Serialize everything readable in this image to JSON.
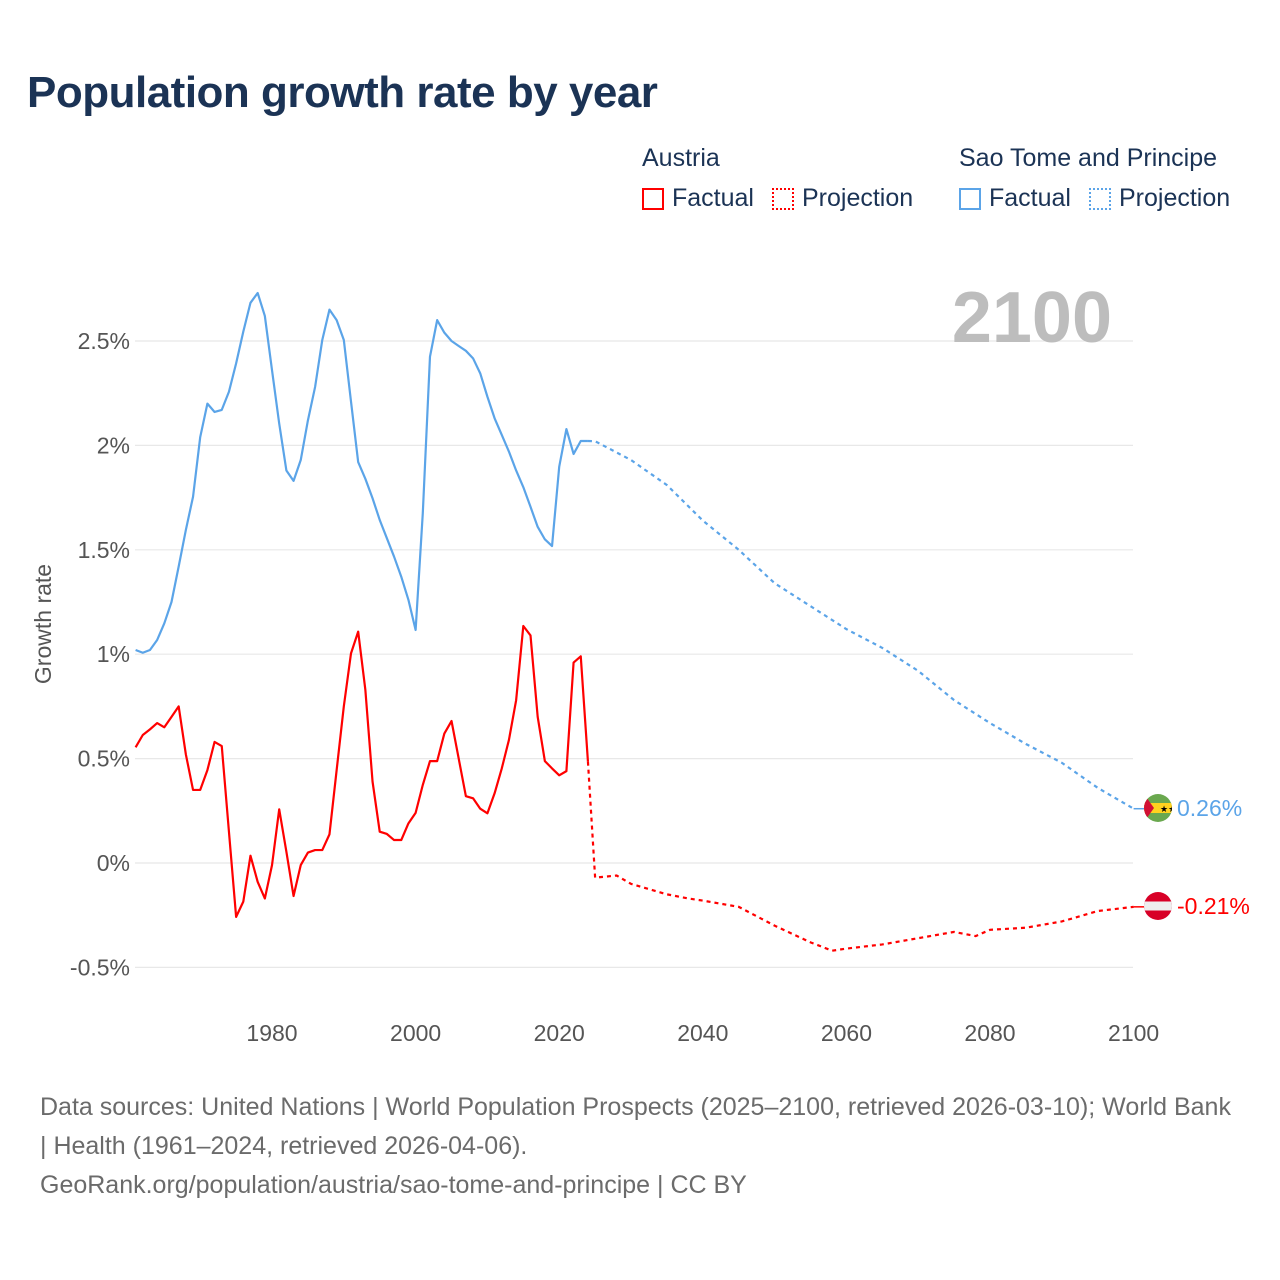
{
  "title": "Population growth rate by year",
  "legend": {
    "groups": [
      {
        "country": "Austria",
        "factual_label": "Factual",
        "projection_label": "Projection",
        "color": "#ff0000"
      },
      {
        "country": "Sao Tome and Principe",
        "factual_label": "Factual",
        "projection_label": "Projection",
        "color": "#5ba4e8"
      }
    ]
  },
  "year_overlay": "2100",
  "footer": {
    "sources": "Data sources: United Nations | World Population Prospects (2025–2100, retrieved 2026-03-10); World Bank | Health (1961–2024, retrieved 2026-04-06).",
    "credit": "GeoRank.org/population/austria/sao-tome-and-principe | CC BY"
  },
  "chart_data": {
    "type": "line",
    "title": "Population growth rate by year",
    "xlabel": "",
    "ylabel": "Growth rate",
    "xlim": [
      1961,
      2100
    ],
    "ylim": [
      -0.5,
      2.75
    ],
    "x_ticks": [
      1980,
      2000,
      2020,
      2040,
      2060,
      2080,
      2100
    ],
    "x_tick_labels": [
      "1980",
      "2000",
      "2020",
      "2040",
      "2060",
      "2080",
      "2100"
    ],
    "y_ticks": [
      -0.5,
      0,
      0.5,
      1,
      1.5,
      2,
      2.5
    ],
    "y_tick_labels": [
      "-0.5%",
      "0%",
      "0.5%",
      "1%",
      "1.5%",
      "2%",
      "2.5%"
    ],
    "grid": true,
    "legend_placement": "top-right",
    "series": [
      {
        "name": "Austria",
        "color": "#ff0000",
        "end_label": "-0.21%",
        "factual": {
          "start_year": 1961,
          "values": [
            0.554,
            0.613,
            0.64,
            0.67,
            0.65,
            0.7,
            0.75,
            0.52,
            0.35,
            0.35,
            0.445,
            0.58,
            0.56,
            0.15,
            -0.258,
            -0.185,
            0.035,
            -0.09,
            -0.17,
            -0.01,
            0.257,
            0.054,
            -0.158,
            -0.01,
            0.05,
            0.062,
            0.062,
            0.137,
            0.445,
            0.75,
            1.004,
            1.108,
            0.829,
            0.39,
            0.15,
            0.139,
            0.11,
            0.11,
            0.19,
            0.24,
            0.374,
            0.488,
            0.488,
            0.62,
            0.68,
            0.5,
            0.32,
            0.31,
            0.26,
            0.238,
            0.334,
            0.453,
            0.59,
            0.78,
            1.135,
            1.09,
            0.7,
            0.488,
            0.453,
            0.42,
            0.44,
            0.96,
            0.99,
            0.485
          ]
        },
        "projection": {
          "years": [
            2024,
            2025,
            2028,
            2030,
            2035,
            2038,
            2040,
            2045,
            2050,
            2055,
            2058,
            2060,
            2065,
            2070,
            2075,
            2078,
            2080,
            2085,
            2090,
            2095,
            2100
          ],
          "values": [
            0.485,
            -0.07,
            -0.06,
            -0.1,
            -0.15,
            -0.17,
            -0.18,
            -0.21,
            -0.3,
            -0.38,
            -0.42,
            -0.41,
            -0.39,
            -0.36,
            -0.33,
            -0.35,
            -0.32,
            -0.31,
            -0.28,
            -0.23,
            -0.21
          ]
        }
      },
      {
        "name": "Sao Tome and Principe",
        "color": "#5ba4e8",
        "end_label": "0.26%",
        "factual": {
          "start_year": 1961,
          "values": [
            1.02,
            1.007,
            1.02,
            1.068,
            1.148,
            1.25,
            1.42,
            1.595,
            1.754,
            2.04,
            2.2,
            2.16,
            2.17,
            2.257,
            2.393,
            2.545,
            2.683,
            2.73,
            2.62,
            2.36,
            2.105,
            1.88,
            1.83,
            1.93,
            2.12,
            2.28,
            2.505,
            2.65,
            2.6,
            2.505,
            2.21,
            1.92,
            1.84,
            1.747,
            1.643,
            1.555,
            1.467,
            1.371,
            1.26,
            1.116,
            1.676,
            2.425,
            2.6,
            2.54,
            2.5,
            2.476,
            2.453,
            2.417,
            2.345,
            2.233,
            2.13,
            2.05,
            1.97,
            1.88,
            1.8,
            1.706,
            1.61,
            1.55,
            1.518,
            1.898,
            2.078,
            1.959,
            2.021,
            2.021
          ]
        },
        "projection": {
          "years": [
            2024,
            2025,
            2030,
            2035,
            2040,
            2045,
            2050,
            2055,
            2060,
            2065,
            2070,
            2075,
            2080,
            2085,
            2090,
            2095,
            2100
          ],
          "values": [
            2.021,
            2.02,
            1.93,
            1.81,
            1.64,
            1.5,
            1.34,
            1.23,
            1.12,
            1.03,
            0.92,
            0.78,
            0.67,
            0.57,
            0.48,
            0.36,
            0.26
          ]
        }
      }
    ]
  }
}
